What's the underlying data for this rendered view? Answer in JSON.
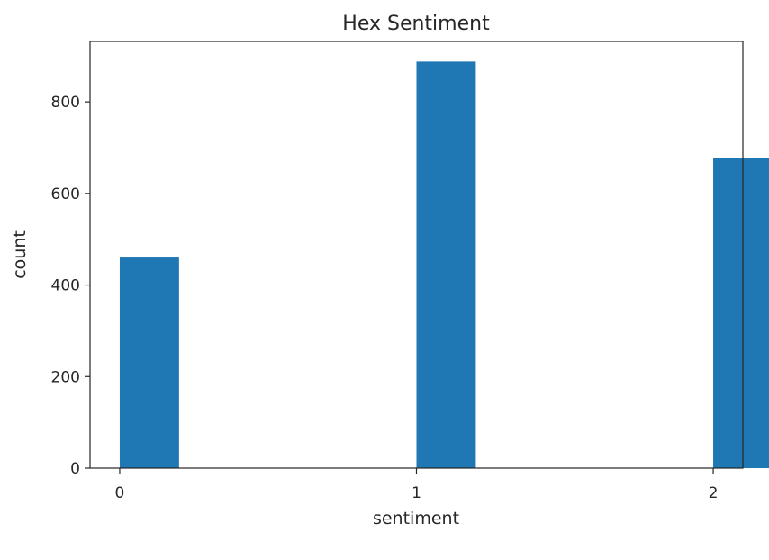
{
  "chart_data": {
    "type": "bar",
    "title": "Hex Sentiment",
    "xlabel": "sentiment",
    "ylabel": "count",
    "x": [
      0,
      1,
      2
    ],
    "values": [
      460,
      888,
      678
    ],
    "bar_width": 0.2,
    "xlim": [
      -0.1,
      2.1
    ],
    "ylim": [
      0,
      932
    ],
    "xticks": [
      0,
      1,
      2
    ],
    "yticks": [
      0,
      200,
      400,
      600,
      800
    ],
    "grid": false,
    "legend": "none",
    "bar_color": "#1f77b4"
  }
}
